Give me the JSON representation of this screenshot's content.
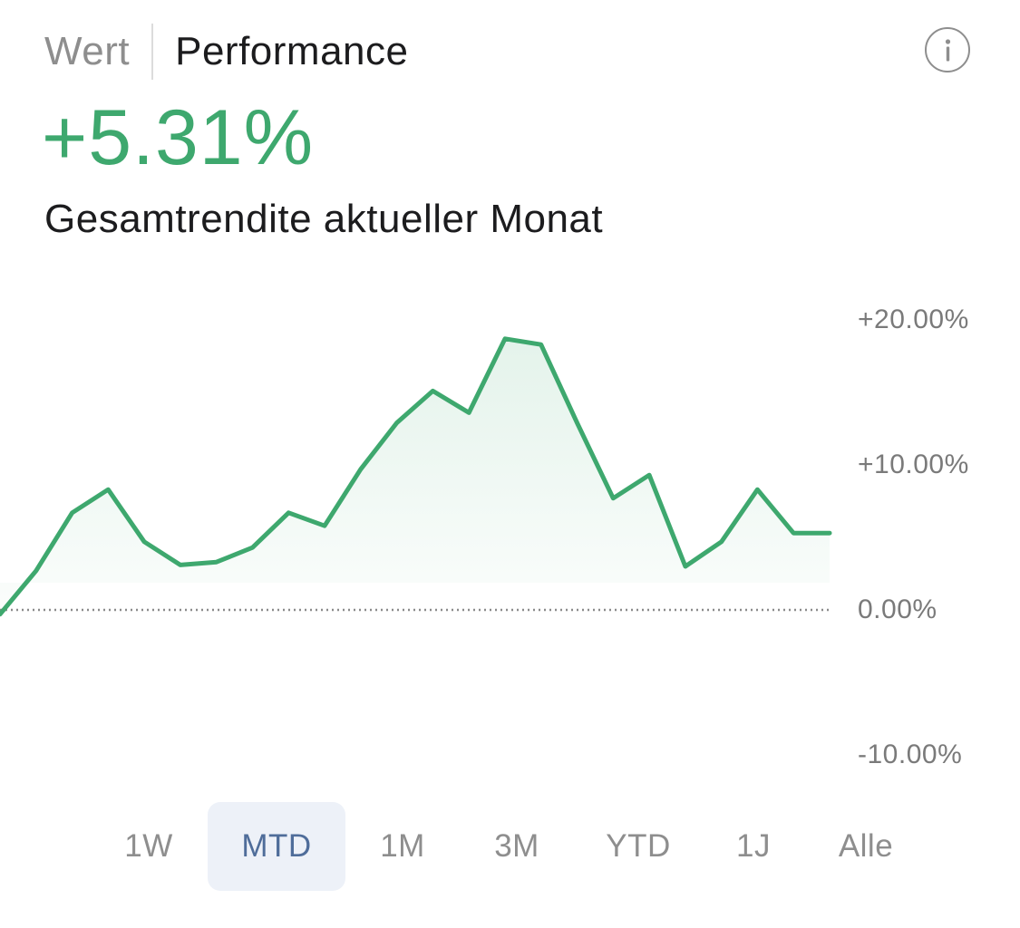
{
  "header": {
    "tabs": [
      {
        "label": "Wert",
        "active": false
      },
      {
        "label": "Performance",
        "active": true
      }
    ],
    "info_icon": "info-circle-icon"
  },
  "summary": {
    "value": "+5.31%",
    "label": "Gesamtrendite aktueller Monat",
    "value_color": "#3ea86e"
  },
  "chart_data": {
    "type": "area",
    "y_ticks": [
      "+20.00%",
      "+10.00%",
      "0.00%",
      "-10.00%"
    ],
    "ylim": [
      -10,
      20
    ],
    "baseline": 0,
    "baseline_style": "dotted",
    "line_color": "#3ea86e",
    "series": [
      {
        "values": [
          -0.3,
          2.7,
          6.7,
          8.3,
          4.7,
          3.1,
          3.3,
          4.3,
          6.7,
          5.8,
          9.7,
          12.9,
          15.1,
          13.6,
          18.7,
          18.3,
          12.9,
          7.7,
          9.3,
          3.0,
          4.7,
          8.3,
          5.3,
          5.3
        ]
      }
    ]
  },
  "range_selector": {
    "options": [
      "1W",
      "MTD",
      "1M",
      "3M",
      "YTD",
      "1J",
      "Alle"
    ],
    "selected": "MTD",
    "selected_bg": "#edf1f8",
    "selected_color": "#4f6d9a"
  }
}
